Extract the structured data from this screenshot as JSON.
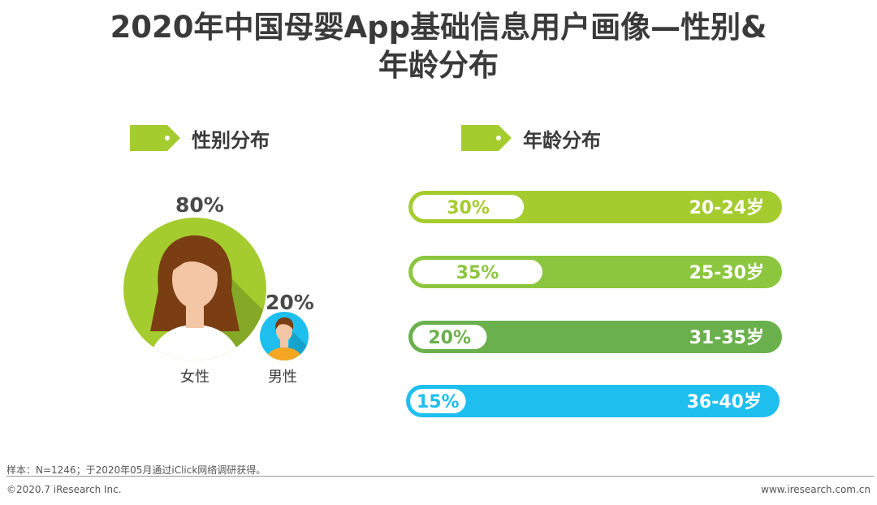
{
  "title": "2020年中国母婴App基础信息用户画像—性别&年龄分布",
  "title_line1": "2020年中国母婴App基础信息用户画像—性别&",
  "title_line2": "年龄分布",
  "sections": {
    "gender": "性别分布",
    "age": "年龄分布"
  },
  "colors": {
    "green_light": "#A5CC2E",
    "green_mid": "#8CC63F",
    "green_dark": "#6AB04C",
    "blue": "#1EBFEF",
    "text": "#3A3A3A"
  },
  "gender": {
    "female": {
      "label": "女性",
      "percent": "80%",
      "value": 80
    },
    "male": {
      "label": "男性",
      "percent": "20%",
      "value": 20
    }
  },
  "chart_data": {
    "type": "bar",
    "categories": [
      "20-24岁",
      "25-30岁",
      "31-35岁",
      "36-40岁"
    ],
    "values": [
      30,
      35,
      20,
      15
    ],
    "labels": [
      "30%",
      "35%",
      "20%",
      "15%"
    ],
    "colors": [
      "#A5CC2E",
      "#8CC63F",
      "#6AB04C",
      "#1EBFEF"
    ]
  },
  "footnote": "样本：N=1246；于2020年05月通过iClick网络调研获得。",
  "copyright": "©2020.7 iResearch Inc.",
  "website": "www.iresearch.com.cn"
}
